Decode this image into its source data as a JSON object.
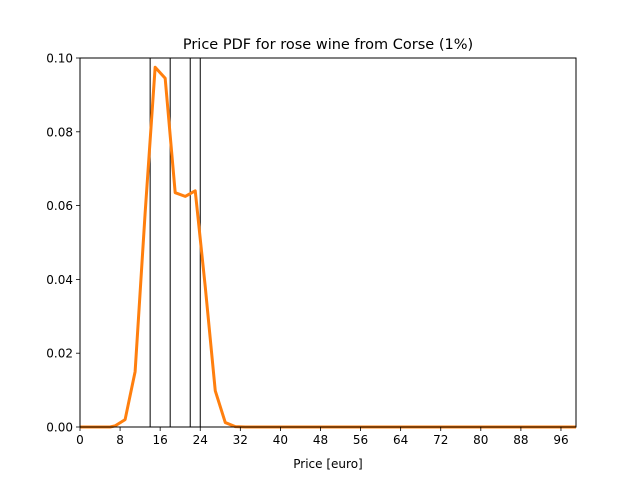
{
  "chart_data": {
    "type": "line",
    "title": "Price PDF for rose wine from Corse (1%)",
    "xlabel": "Price [euro]",
    "ylabel": "",
    "xlim": [
      0,
      99
    ],
    "ylim": [
      0,
      0.1
    ],
    "xticks": [
      0,
      8,
      16,
      24,
      32,
      40,
      48,
      56,
      64,
      72,
      80,
      88,
      96
    ],
    "yticks": [
      0.0,
      0.02,
      0.04,
      0.06,
      0.08,
      0.1
    ],
    "ytick_labels": [
      "0.00",
      "0.02",
      "0.04",
      "0.06",
      "0.08",
      "0.10"
    ],
    "grid": false,
    "series": [
      {
        "color": "#ff7f0e",
        "x": [
          0,
          2,
          4,
          6,
          7,
          9,
          11,
          13,
          15,
          17,
          19,
          21,
          23,
          25,
          27,
          29,
          31,
          33,
          35,
          40,
          50,
          60,
          70,
          80,
          90,
          99
        ],
        "y": [
          0.0,
          0.0,
          0.0,
          0.0,
          0.0003,
          0.002,
          0.015,
          0.058,
          0.0975,
          0.0945,
          0.0635,
          0.0625,
          0.064,
          0.038,
          0.0098,
          0.0012,
          0.0001,
          0.0,
          0.0,
          0.0,
          0.0,
          0.0,
          0.0,
          0.0,
          0.0,
          0.0
        ]
      }
    ],
    "vertical_lines": {
      "color": "#000000",
      "x": [
        14,
        18,
        22,
        24
      ]
    }
  }
}
